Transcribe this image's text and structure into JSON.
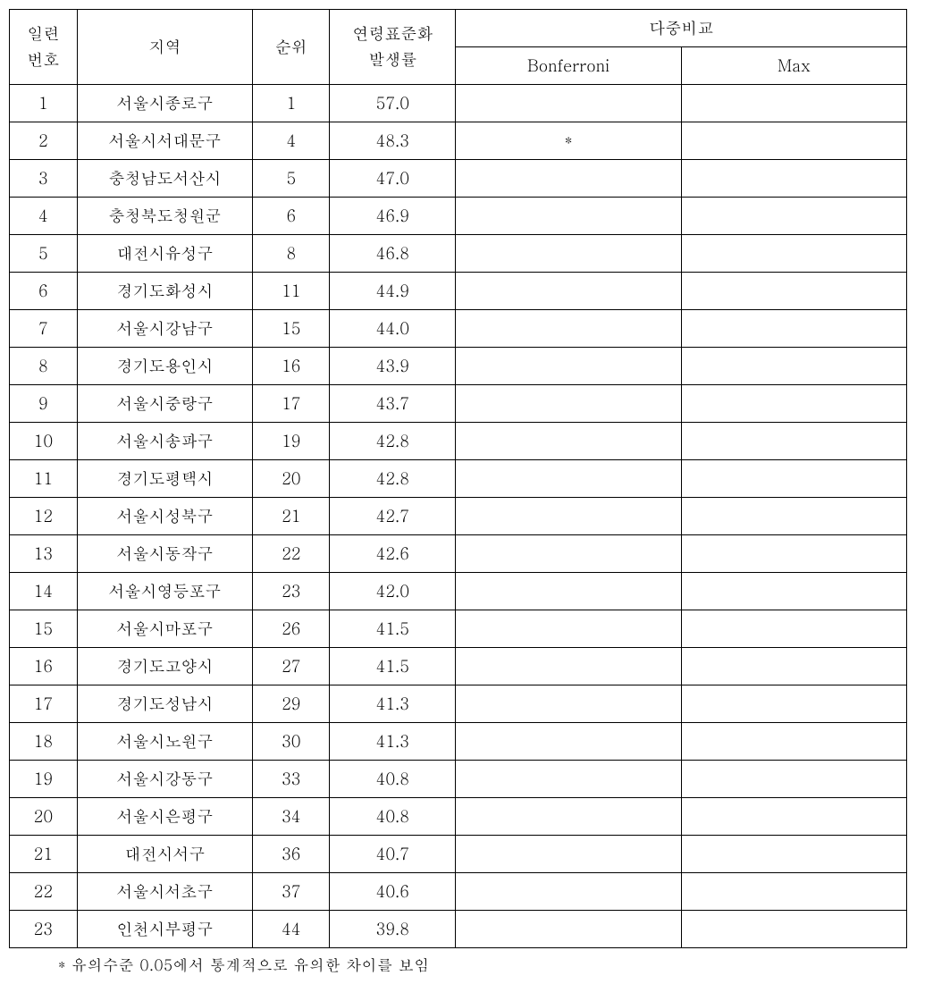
{
  "table": {
    "type": "table",
    "columns": {
      "seq_line1": "일련",
      "seq_line2": "번호",
      "region": "지역",
      "rank": "순위",
      "rate_line1": "연령표준화",
      "rate_line2": "발생률",
      "multi": "다중비교",
      "bonferroni": "Bonferroni",
      "max": "Max"
    },
    "rows": [
      {
        "seq": "1",
        "region": "서울시종로구",
        "rank": "1",
        "rate": "57.0",
        "bonf": "",
        "max": ""
      },
      {
        "seq": "2",
        "region": "서울시서대문구",
        "rank": "4",
        "rate": "48.3",
        "bonf": "*",
        "max": ""
      },
      {
        "seq": "3",
        "region": "충청남도서산시",
        "rank": "5",
        "rate": "47.0",
        "bonf": "",
        "max": ""
      },
      {
        "seq": "4",
        "region": "충청북도청원군",
        "rank": "6",
        "rate": "46.9",
        "bonf": "",
        "max": ""
      },
      {
        "seq": "5",
        "region": "대전시유성구",
        "rank": "8",
        "rate": "46.8",
        "bonf": "",
        "max": ""
      },
      {
        "seq": "6",
        "region": "경기도화성시",
        "rank": "11",
        "rate": "44.9",
        "bonf": "",
        "max": ""
      },
      {
        "seq": "7",
        "region": "서울시강남구",
        "rank": "15",
        "rate": "44.0",
        "bonf": "",
        "max": ""
      },
      {
        "seq": "8",
        "region": "경기도용인시",
        "rank": "16",
        "rate": "43.9",
        "bonf": "",
        "max": ""
      },
      {
        "seq": "9",
        "region": "서울시중랑구",
        "rank": "17",
        "rate": "43.7",
        "bonf": "",
        "max": ""
      },
      {
        "seq": "10",
        "region": "서울시송파구",
        "rank": "19",
        "rate": "42.8",
        "bonf": "",
        "max": ""
      },
      {
        "seq": "11",
        "region": "경기도평택시",
        "rank": "20",
        "rate": "42.8",
        "bonf": "",
        "max": ""
      },
      {
        "seq": "12",
        "region": "서울시성북구",
        "rank": "21",
        "rate": "42.7",
        "bonf": "",
        "max": ""
      },
      {
        "seq": "13",
        "region": "서울시동작구",
        "rank": "22",
        "rate": "42.6",
        "bonf": "",
        "max": ""
      },
      {
        "seq": "14",
        "region": "서울시영등포구",
        "rank": "23",
        "rate": "42.0",
        "bonf": "",
        "max": ""
      },
      {
        "seq": "15",
        "region": "서울시마포구",
        "rank": "26",
        "rate": "41.5",
        "bonf": "",
        "max": ""
      },
      {
        "seq": "16",
        "region": "경기도고양시",
        "rank": "27",
        "rate": "41.5",
        "bonf": "",
        "max": ""
      },
      {
        "seq": "17",
        "region": "경기도성남시",
        "rank": "29",
        "rate": "41.3",
        "bonf": "",
        "max": ""
      },
      {
        "seq": "18",
        "region": "서울시노원구",
        "rank": "30",
        "rate": "41.3",
        "bonf": "",
        "max": ""
      },
      {
        "seq": "19",
        "region": "서울시강동구",
        "rank": "33",
        "rate": "40.8",
        "bonf": "",
        "max": ""
      },
      {
        "seq": "20",
        "region": "서울시은평구",
        "rank": "34",
        "rate": "40.8",
        "bonf": "",
        "max": ""
      },
      {
        "seq": "21",
        "region": "대전시서구",
        "rank": "36",
        "rate": "40.7",
        "bonf": "",
        "max": ""
      },
      {
        "seq": "22",
        "region": "서울시서초구",
        "rank": "37",
        "rate": "40.6",
        "bonf": "",
        "max": ""
      },
      {
        "seq": "23",
        "region": "인천시부평구",
        "rank": "44",
        "rate": "39.8",
        "bonf": "",
        "max": ""
      }
    ],
    "footnote": "* 유의수준 0.05에서 통계적으로 유의한 차이를 보임",
    "border_color": "#000000",
    "background_color": "#ffffff",
    "font_color": "#000000",
    "header_fontsize": 18,
    "body_fontsize": 18,
    "footnote_fontsize": 17
  }
}
